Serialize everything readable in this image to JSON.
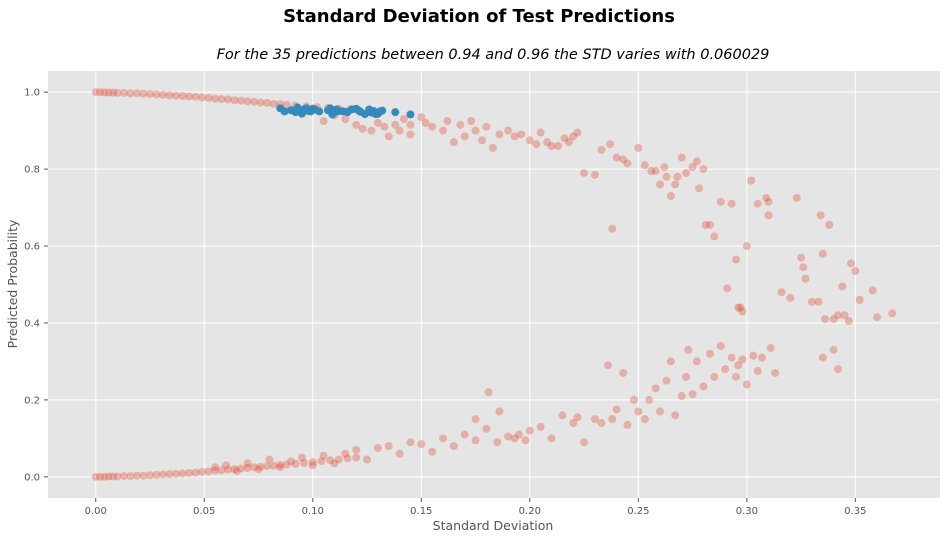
{
  "chart_data": {
    "type": "scatter",
    "title": "Standard Deviation of Test Predictions",
    "subtitle": "For the 35 predictions between 0.94 and 0.96 the STD varies with 0.060029",
    "xlabel": "Standard Deviation",
    "ylabel": "Predicted Probability",
    "xlim": [
      -0.022,
      0.389
    ],
    "ylim": [
      -0.055,
      1.055
    ],
    "xticks": [
      "0.00",
      "0.05",
      "0.10",
      "0.15",
      "0.20",
      "0.25",
      "0.30",
      "0.35"
    ],
    "yticks": [
      "0.0",
      "0.2",
      "0.4",
      "0.6",
      "0.8",
      "1.0"
    ],
    "grid": true,
    "style": "ggplot",
    "series": [
      {
        "color": "#E24A33",
        "opacity": 0.35,
        "points": [
          [
            0.0,
            1.0
          ],
          [
            0.002,
            1.0
          ],
          [
            0.004,
            0.999
          ],
          [
            0.006,
            0.999
          ],
          [
            0.008,
            0.999
          ],
          [
            0.01,
            0.998
          ],
          [
            0.013,
            0.998
          ],
          [
            0.016,
            0.997
          ],
          [
            0.019,
            0.997
          ],
          [
            0.022,
            0.996
          ],
          [
            0.025,
            0.995
          ],
          [
            0.028,
            0.994
          ],
          [
            0.031,
            0.993
          ],
          [
            0.034,
            0.992
          ],
          [
            0.037,
            0.991
          ],
          [
            0.04,
            0.99
          ],
          [
            0.043,
            0.989
          ],
          [
            0.046,
            0.988
          ],
          [
            0.049,
            0.986
          ],
          [
            0.052,
            0.985
          ],
          [
            0.055,
            0.983
          ],
          [
            0.058,
            0.982
          ],
          [
            0.061,
            0.981
          ],
          [
            0.064,
            0.979
          ],
          [
            0.067,
            0.978
          ],
          [
            0.07,
            0.976
          ],
          [
            0.073,
            0.975
          ],
          [
            0.076,
            0.973
          ],
          [
            0.079,
            0.972
          ],
          [
            0.082,
            0.97
          ],
          [
            0.085,
            0.969
          ],
          [
            0.088,
            0.967
          ],
          [
            0.092,
            0.965
          ],
          [
            0.097,
            0.963
          ],
          [
            0.102,
            0.961
          ],
          [
            0.107,
            0.959
          ],
          [
            0.112,
            0.957
          ],
          [
            0.117,
            0.955
          ],
          [
            0.105,
            0.925
          ],
          [
            0.11,
            0.94
          ],
          [
            0.115,
            0.93
          ],
          [
            0.12,
            0.915
          ],
          [
            0.123,
            0.905
          ],
          [
            0.127,
            0.9
          ],
          [
            0.13,
            0.92
          ],
          [
            0.133,
            0.91
          ],
          [
            0.135,
            0.885
          ],
          [
            0.138,
            0.915
          ],
          [
            0.14,
            0.9
          ],
          [
            0.142,
            0.93
          ],
          [
            0.145,
            0.915
          ],
          [
            0.145,
            0.89
          ],
          [
            0.15,
            0.935
          ],
          [
            0.152,
            0.92
          ],
          [
            0.155,
            0.91
          ],
          [
            0.16,
            0.9
          ],
          [
            0.162,
            0.925
          ],
          [
            0.165,
            0.87
          ],
          [
            0.168,
            0.915
          ],
          [
            0.17,
            0.885
          ],
          [
            0.173,
            0.925
          ],
          [
            0.175,
            0.9
          ],
          [
            0.178,
            0.875
          ],
          [
            0.18,
            0.91
          ],
          [
            0.183,
            0.855
          ],
          [
            0.186,
            0.89
          ],
          [
            0.19,
            0.9
          ],
          [
            0.193,
            0.885
          ],
          [
            0.196,
            0.89
          ],
          [
            0.2,
            0.875
          ],
          [
            0.203,
            0.865
          ],
          [
            0.205,
            0.895
          ],
          [
            0.208,
            0.87
          ],
          [
            0.21,
            0.86
          ],
          [
            0.213,
            0.86
          ],
          [
            0.216,
            0.88
          ],
          [
            0.218,
            0.87
          ],
          [
            0.22,
            0.885
          ],
          [
            0.222,
            0.895
          ],
          [
            0.225,
            0.79
          ],
          [
            0.23,
            0.785
          ],
          [
            0.233,
            0.85
          ],
          [
            0.237,
            0.865
          ],
          [
            0.24,
            0.83
          ],
          [
            0.243,
            0.825
          ],
          [
            0.245,
            0.815
          ],
          [
            0.238,
            0.645
          ],
          [
            0.25,
            0.855
          ],
          [
            0.253,
            0.81
          ],
          [
            0.256,
            0.795
          ],
          [
            0.258,
            0.795
          ],
          [
            0.26,
            0.76
          ],
          [
            0.262,
            0.805
          ],
          [
            0.263,
            0.78
          ],
          [
            0.265,
            0.73
          ],
          [
            0.267,
            0.76
          ],
          [
            0.268,
            0.78
          ],
          [
            0.27,
            0.83
          ],
          [
            0.272,
            0.79
          ],
          [
            0.275,
            0.805
          ],
          [
            0.277,
            0.82
          ],
          [
            0.278,
            0.75
          ],
          [
            0.28,
            0.8
          ],
          [
            0.281,
            0.655
          ],
          [
            0.283,
            0.655
          ],
          [
            0.285,
            0.625
          ],
          [
            0.288,
            0.715
          ],
          [
            0.291,
            0.49
          ],
          [
            0.293,
            0.71
          ],
          [
            0.295,
            0.565
          ],
          [
            0.296,
            0.44
          ],
          [
            0.297,
            0.44
          ],
          [
            0.298,
            0.43
          ],
          [
            0.3,
            0.6
          ],
          [
            0.302,
            0.77
          ],
          [
            0.305,
            0.71
          ],
          [
            0.309,
            0.725
          ],
          [
            0.31,
            0.715
          ],
          [
            0.31,
            0.68
          ],
          [
            0.316,
            0.48
          ],
          [
            0.32,
            0.465
          ],
          [
            0.323,
            0.725
          ],
          [
            0.325,
            0.57
          ],
          [
            0.326,
            0.545
          ],
          [
            0.327,
            0.515
          ],
          [
            0.33,
            0.455
          ],
          [
            0.333,
            0.455
          ],
          [
            0.334,
            0.68
          ],
          [
            0.335,
            0.58
          ],
          [
            0.336,
            0.41
          ],
          [
            0.338,
            0.655
          ],
          [
            0.34,
            0.41
          ],
          [
            0.342,
            0.42
          ],
          [
            0.344,
            0.495
          ],
          [
            0.345,
            0.42
          ],
          [
            0.347,
            0.405
          ],
          [
            0.348,
            0.555
          ],
          [
            0.35,
            0.535
          ],
          [
            0.352,
            0.46
          ],
          [
            0.358,
            0.485
          ],
          [
            0.36,
            0.415
          ],
          [
            0.367,
            0.425
          ],
          [
            0.0,
            0.0
          ],
          [
            0.002,
            0.0
          ],
          [
            0.004,
            0.0
          ],
          [
            0.006,
            0.001
          ],
          [
            0.008,
            0.001
          ],
          [
            0.01,
            0.001
          ],
          [
            0.013,
            0.002
          ],
          [
            0.016,
            0.002
          ],
          [
            0.019,
            0.003
          ],
          [
            0.022,
            0.003
          ],
          [
            0.025,
            0.004
          ],
          [
            0.028,
            0.005
          ],
          [
            0.031,
            0.006
          ],
          [
            0.034,
            0.007
          ],
          [
            0.037,
            0.008
          ],
          [
            0.04,
            0.009
          ],
          [
            0.043,
            0.01
          ],
          [
            0.046,
            0.011
          ],
          [
            0.049,
            0.013
          ],
          [
            0.052,
            0.014
          ],
          [
            0.055,
            0.016
          ],
          [
            0.058,
            0.017
          ],
          [
            0.061,
            0.019
          ],
          [
            0.064,
            0.02
          ],
          [
            0.067,
            0.022
          ],
          [
            0.07,
            0.023
          ],
          [
            0.073,
            0.025
          ],
          [
            0.076,
            0.026
          ],
          [
            0.079,
            0.028
          ],
          [
            0.082,
            0.029
          ],
          [
            0.085,
            0.031
          ],
          [
            0.088,
            0.032
          ],
          [
            0.092,
            0.034
          ],
          [
            0.096,
            0.036
          ],
          [
            0.1,
            0.038
          ],
          [
            0.104,
            0.041
          ],
          [
            0.108,
            0.043
          ],
          [
            0.112,
            0.045
          ],
          [
            0.116,
            0.048
          ],
          [
            0.12,
            0.05
          ],
          [
            0.055,
            0.025
          ],
          [
            0.06,
            0.03
          ],
          [
            0.065,
            0.015
          ],
          [
            0.07,
            0.035
          ],
          [
            0.075,
            0.02
          ],
          [
            0.08,
            0.045
          ],
          [
            0.085,
            0.025
          ],
          [
            0.09,
            0.04
          ],
          [
            0.095,
            0.05
          ],
          [
            0.1,
            0.03
          ],
          [
            0.105,
            0.055
          ],
          [
            0.11,
            0.035
          ],
          [
            0.115,
            0.06
          ],
          [
            0.12,
            0.07
          ],
          [
            0.125,
            0.045
          ],
          [
            0.13,
            0.075
          ],
          [
            0.135,
            0.08
          ],
          [
            0.14,
            0.06
          ],
          [
            0.145,
            0.09
          ],
          [
            0.15,
            0.085
          ],
          [
            0.155,
            0.065
          ],
          [
            0.16,
            0.1
          ],
          [
            0.165,
            0.08
          ],
          [
            0.17,
            0.11
          ],
          [
            0.175,
            0.095
          ],
          [
            0.18,
            0.125
          ],
          [
            0.185,
            0.09
          ],
          [
            0.19,
            0.105
          ],
          [
            0.193,
            0.1
          ],
          [
            0.195,
            0.11
          ],
          [
            0.198,
            0.095
          ],
          [
            0.2,
            0.12
          ],
          [
            0.205,
            0.13
          ],
          [
            0.21,
            0.1
          ],
          [
            0.215,
            0.16
          ],
          [
            0.22,
            0.14
          ],
          [
            0.222,
            0.155
          ],
          [
            0.225,
            0.09
          ],
          [
            0.23,
            0.15
          ],
          [
            0.233,
            0.14
          ],
          [
            0.236,
            0.29
          ],
          [
            0.238,
            0.15
          ],
          [
            0.24,
            0.175
          ],
          [
            0.243,
            0.27
          ],
          [
            0.245,
            0.135
          ],
          [
            0.248,
            0.2
          ],
          [
            0.175,
            0.15
          ],
          [
            0.181,
            0.22
          ],
          [
            0.186,
            0.17
          ],
          [
            0.25,
            0.17
          ],
          [
            0.253,
            0.15
          ],
          [
            0.255,
            0.2
          ],
          [
            0.258,
            0.23
          ],
          [
            0.26,
            0.17
          ],
          [
            0.263,
            0.25
          ],
          [
            0.265,
            0.3
          ],
          [
            0.267,
            0.16
          ],
          [
            0.27,
            0.21
          ],
          [
            0.272,
            0.26
          ],
          [
            0.273,
            0.33
          ],
          [
            0.275,
            0.215
          ],
          [
            0.277,
            0.3
          ],
          [
            0.28,
            0.235
          ],
          [
            0.283,
            0.32
          ],
          [
            0.285,
            0.26
          ],
          [
            0.288,
            0.34
          ],
          [
            0.29,
            0.28
          ],
          [
            0.293,
            0.31
          ],
          [
            0.295,
            0.26
          ],
          [
            0.296,
            0.29
          ],
          [
            0.298,
            0.305
          ],
          [
            0.3,
            0.24
          ],
          [
            0.303,
            0.315
          ],
          [
            0.305,
            0.275
          ],
          [
            0.307,
            0.31
          ],
          [
            0.311,
            0.335
          ],
          [
            0.313,
            0.27
          ],
          [
            0.335,
            0.31
          ],
          [
            0.34,
            0.33
          ],
          [
            0.342,
            0.28
          ]
        ]
      },
      {
        "color": "#348ABD",
        "opacity": 1.0,
        "points": [
          [
            0.085,
            0.958
          ],
          [
            0.087,
            0.95
          ],
          [
            0.09,
            0.953
          ],
          [
            0.092,
            0.948
          ],
          [
            0.093,
            0.96
          ],
          [
            0.095,
            0.944
          ],
          [
            0.096,
            0.955
          ],
          [
            0.097,
            0.958
          ],
          [
            0.098,
            0.951
          ],
          [
            0.099,
            0.95
          ],
          [
            0.1,
            0.957
          ],
          [
            0.101,
            0.955
          ],
          [
            0.103,
            0.95
          ],
          [
            0.107,
            0.953
          ],
          [
            0.108,
            0.958
          ],
          [
            0.109,
            0.942
          ],
          [
            0.11,
            0.947
          ],
          [
            0.111,
            0.955
          ],
          [
            0.112,
            0.951
          ],
          [
            0.114,
            0.95
          ],
          [
            0.116,
            0.948
          ],
          [
            0.118,
            0.955
          ],
          [
            0.12,
            0.957
          ],
          [
            0.121,
            0.953
          ],
          [
            0.122,
            0.949
          ],
          [
            0.124,
            0.943
          ],
          [
            0.126,
            0.955
          ],
          [
            0.127,
            0.947
          ],
          [
            0.128,
            0.951
          ],
          [
            0.129,
            0.943
          ],
          [
            0.13,
            0.944
          ],
          [
            0.131,
            0.95
          ],
          [
            0.132,
            0.952
          ],
          [
            0.138,
            0.948
          ],
          [
            0.145,
            0.942
          ]
        ]
      }
    ]
  }
}
